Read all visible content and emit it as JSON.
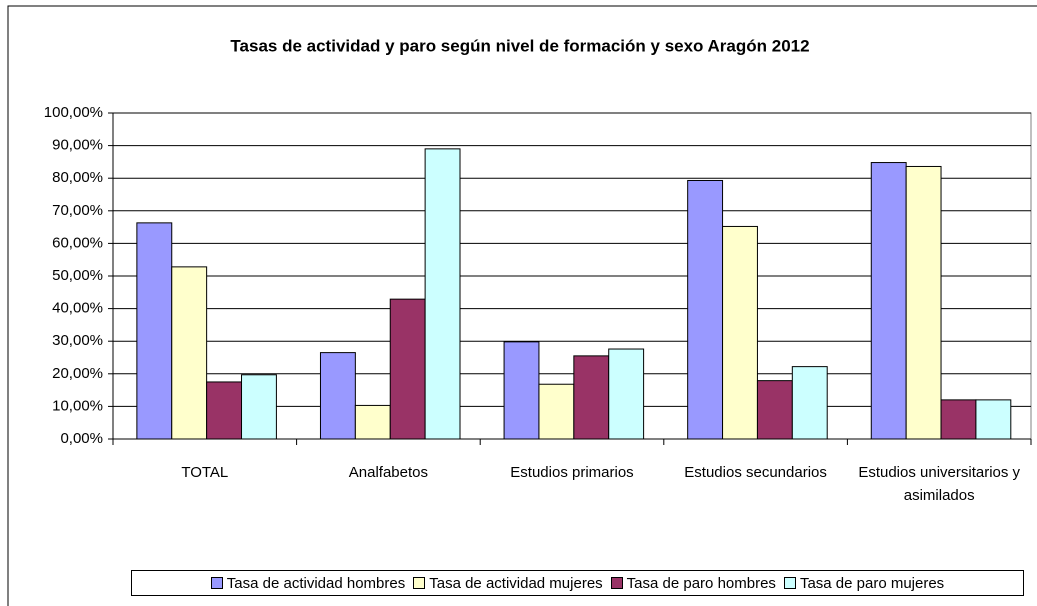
{
  "chart_data": {
    "type": "bar",
    "title": "Tasas de actividad y paro según nivel de formación y sexo Aragón 2012",
    "categories": [
      "TOTAL",
      "Analfabetos",
      "Estudios primarios",
      "Estudios secundarios",
      "Estudios universitarios y asimilados"
    ],
    "series": [
      {
        "name": "Tasa de actividad hombres",
        "color": "#9999ff",
        "values": [
          66.3,
          26.5,
          29.8,
          79.3,
          84.8
        ]
      },
      {
        "name": "Tasa de actividad mujeres",
        "color": "#ffffcc",
        "values": [
          52.8,
          10.3,
          16.8,
          65.2,
          83.6
        ]
      },
      {
        "name": "Tasa de paro hombres",
        "color": "#993366",
        "values": [
          17.5,
          42.9,
          25.5,
          17.9,
          12.0
        ]
      },
      {
        "name": "Tasa de paro mujeres",
        "color": "#ccffff",
        "values": [
          19.7,
          89.0,
          27.6,
          22.2,
          12.0
        ]
      }
    ],
    "ylim": [
      0,
      100
    ],
    "yticks": [
      {
        "value": 0,
        "label": "0,00%"
      },
      {
        "value": 10,
        "label": "10,00%"
      },
      {
        "value": 20,
        "label": "20,00%"
      },
      {
        "value": 30,
        "label": "30,00%"
      },
      {
        "value": 40,
        "label": "40,00%"
      },
      {
        "value": 50,
        "label": "50,00%"
      },
      {
        "value": 60,
        "label": "60,00%"
      },
      {
        "value": 70,
        "label": "70,00%"
      },
      {
        "value": 80,
        "label": "80,00%"
      },
      {
        "value": 90,
        "label": "90,00%"
      },
      {
        "value": 100,
        "label": "100,00%"
      }
    ],
    "grid": true,
    "legend": "bottom"
  }
}
